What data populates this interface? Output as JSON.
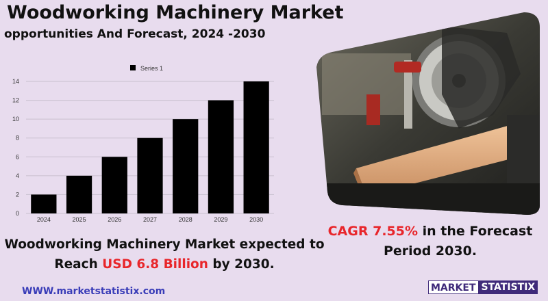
{
  "header": {
    "title": "Woodworking Machinery Market",
    "subtitle": "opportunities And Forecast, 2024 -2030"
  },
  "chart_data": {
    "type": "bar",
    "categories": [
      "2024",
      "2025",
      "2026",
      "2027",
      "2028",
      "2029",
      "2030"
    ],
    "series": [
      {
        "name": "Series 1",
        "values": [
          2,
          4,
          6,
          8,
          10,
          12,
          14
        ]
      }
    ],
    "yticks": [
      "0",
      "2",
      "4",
      "6",
      "8",
      "10",
      "12",
      "14"
    ],
    "ylim": [
      0,
      14
    ],
    "grid": true,
    "legend_position": "top",
    "bar_color": "#000000"
  },
  "cagr": {
    "prefix": "CAGR  7.55%",
    "suffix": "  in the  Forecast",
    "line2": "Period  2030."
  },
  "reach": {
    "line1": "Woodworking Machinery Market expected to",
    "prefix": "Reach ",
    "highlight": "USD 6.8 Billion",
    "suffix": " by 2030."
  },
  "footer": {
    "website": "WWW.marketstatistix.com",
    "logo_part1": "MARKET",
    "logo_part2": "STATISTIX"
  },
  "colors": {
    "background": "#e8dcee",
    "accent_red": "#e8262b",
    "link_blue": "#3a3db8",
    "brand_purple": "#3f2a7a"
  },
  "icons": [
    "miter-saw-photo"
  ]
}
